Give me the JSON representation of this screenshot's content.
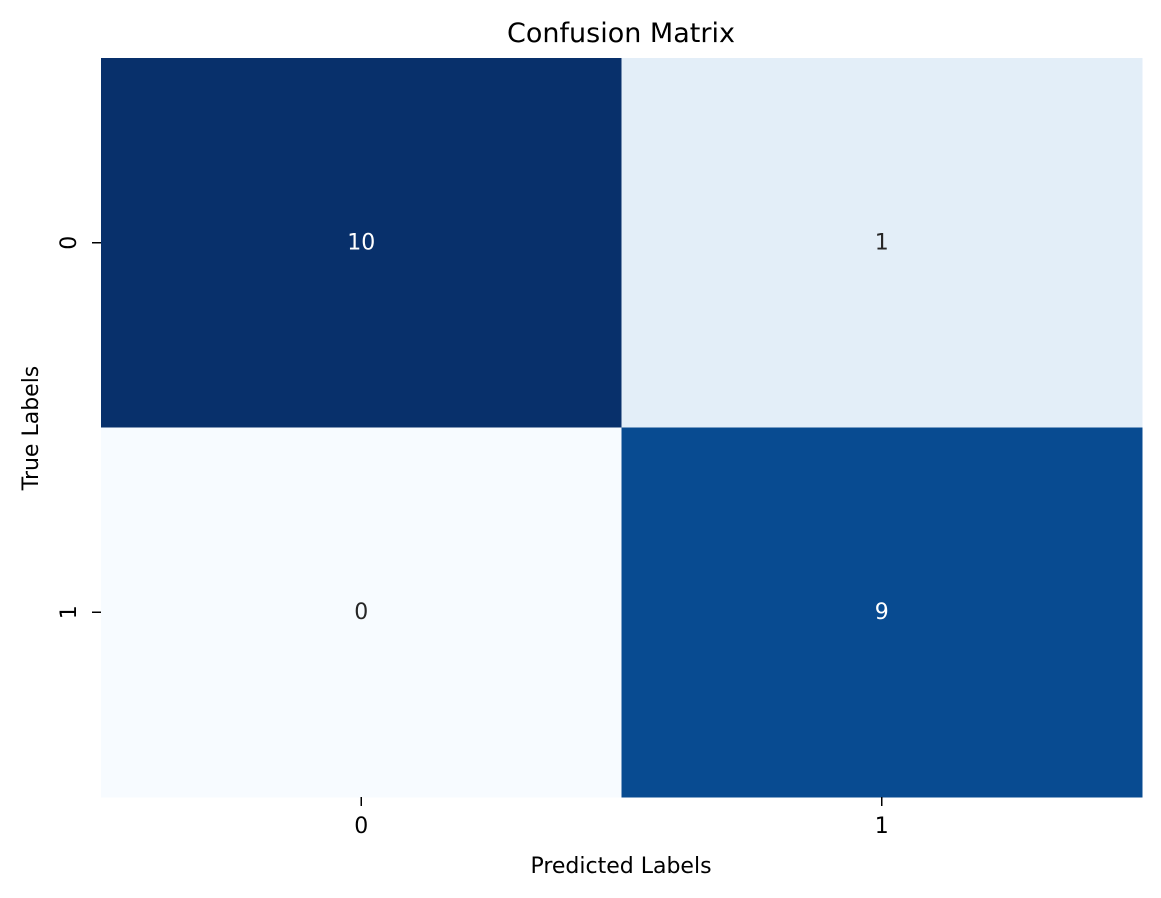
{
  "chart_data": {
    "type": "heatmap",
    "title": "Confusion Matrix",
    "xlabel": "Predicted Labels",
    "ylabel": "True Labels",
    "x_categories": [
      "0",
      "1"
    ],
    "y_categories": [
      "0",
      "1"
    ],
    "values": [
      [
        10,
        1
      ],
      [
        0,
        9
      ]
    ],
    "colormap": "Blues",
    "colorbar": false,
    "cell_colors": [
      [
        "#08306b",
        "#e3eef8"
      ],
      [
        "#f7fbff",
        "#084b91"
      ]
    ],
    "annotation_colors": [
      [
        "#ffffff",
        "#262626"
      ],
      [
        "#262626",
        "#ffffff"
      ]
    ]
  }
}
